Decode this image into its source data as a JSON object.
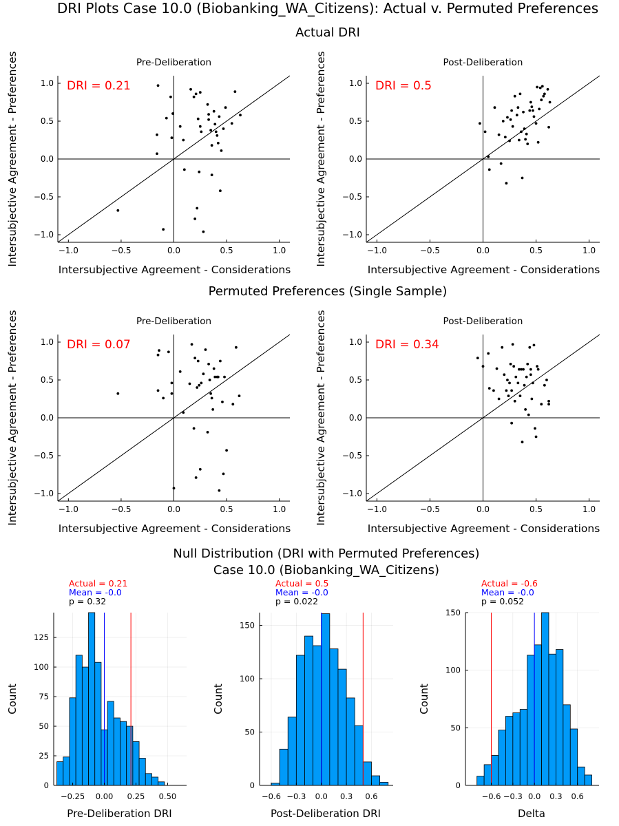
{
  "figure": {
    "title": "DRI Plots Case 10.0 (Biobanking_WA_Citizens): Actual v. Permuted Preferences",
    "actual_title": "Actual DRI",
    "permuted_title": "Permuted Preferences (Single Sample)",
    "null_title_line1": "Null Distribution (DRI with Permuted Preferences)",
    "null_title_line2": "Case 10.0 (Biobanking_WA_Citizens)"
  },
  "colors": {
    "dri": "#ff0000",
    "mean": "#0000ff",
    "bars": "#009af9",
    "points": "#000000"
  },
  "chart_data": [
    {
      "type": "scatter",
      "title": "Pre-Deliberation",
      "dri_label": "DRI = 0.21",
      "xlabel": "Intersubjective Agreement - Considerations",
      "ylabel": "Intersubjective Agreement - Preferences",
      "xlim": [
        -1.1,
        1.1
      ],
      "ylim": [
        -1.1,
        1.1
      ],
      "xticks": [
        -1.0,
        -0.5,
        0.0,
        0.5,
        1.0
      ],
      "yticks": [
        -1.0,
        -0.5,
        0.0,
        0.5,
        1.0
      ],
      "xtick_labels": [
        "−1.0",
        "−0.5",
        "0.0",
        "0.5",
        "1.0"
      ],
      "ytick_labels": [
        "−1.0",
        "−0.5",
        "0.0",
        "0.5",
        "1.0"
      ],
      "points": [
        [
          -0.53,
          -0.68
        ],
        [
          -0.15,
          0.97
        ],
        [
          -0.16,
          0.32
        ],
        [
          -0.16,
          0.07
        ],
        [
          -0.1,
          -0.93
        ],
        [
          -0.07,
          0.54
        ],
        [
          -0.03,
          0.82
        ],
        [
          -0.02,
          0.28
        ],
        [
          -0.01,
          0.6
        ],
        [
          0.06,
          0.43
        ],
        [
          0.09,
          0.25
        ],
        [
          0.1,
          -0.14
        ],
        [
          0.16,
          0.92
        ],
        [
          0.19,
          0.82
        ],
        [
          0.2,
          -0.79
        ],
        [
          0.21,
          0.86
        ],
        [
          0.22,
          -0.65
        ],
        [
          0.24,
          -0.17
        ],
        [
          0.25,
          0.88
        ],
        [
          0.23,
          0.53
        ],
        [
          0.25,
          0.43
        ],
        [
          0.26,
          0.36
        ],
        [
          0.28,
          -0.96
        ],
        [
          0.32,
          0.72
        ],
        [
          0.33,
          0.52
        ],
        [
          0.35,
          0.38
        ],
        [
          0.36,
          -0.21
        ],
        [
          0.36,
          0.18
        ],
        [
          0.38,
          0.63
        ],
        [
          0.39,
          0.46
        ],
        [
          0.4,
          0.36
        ],
        [
          0.41,
          0.31
        ],
        [
          0.42,
          0.21
        ],
        [
          0.43,
          0.56
        ],
        [
          0.44,
          -0.42
        ],
        [
          0.45,
          0.11
        ],
        [
          0.47,
          0.4
        ],
        [
          0.49,
          0.68
        ],
        [
          0.55,
          0.47
        ],
        [
          0.58,
          0.89
        ],
        [
          0.63,
          0.58
        ],
        [
          0.33,
          0.59
        ]
      ]
    },
    {
      "type": "scatter",
      "title": "Post-Deliberation",
      "dri_label": "DRI = 0.5",
      "xlabel": "Intersubjective Agreement - Considerations",
      "ylabel": "Intersubjective Agreement - Preferences",
      "xlim": [
        -1.1,
        1.1
      ],
      "ylim": [
        -1.1,
        1.1
      ],
      "xticks": [
        -1.0,
        -0.5,
        0.0,
        0.5,
        1.0
      ],
      "yticks": [
        -1.0,
        -0.5,
        0.0,
        0.5,
        1.0
      ],
      "xtick_labels": [
        "−1.0",
        "−0.5",
        "0.0",
        "0.5",
        "1.0"
      ],
      "ytick_labels": [
        "−1.0",
        "−0.5",
        "0.0",
        "0.5",
        "1.0"
      ],
      "points": [
        [
          -0.03,
          0.47
        ],
        [
          0.02,
          0.36
        ],
        [
          0.05,
          0.03
        ],
        [
          0.06,
          -0.14
        ],
        [
          0.11,
          0.68
        ],
        [
          0.15,
          0.32
        ],
        [
          0.17,
          -0.06
        ],
        [
          0.19,
          0.5
        ],
        [
          0.21,
          0.29
        ],
        [
          0.22,
          -0.32
        ],
        [
          0.23,
          0.55
        ],
        [
          0.25,
          0.24
        ],
        [
          0.26,
          0.52
        ],
        [
          0.27,
          0.64
        ],
        [
          0.28,
          0.43
        ],
        [
          0.3,
          0.83
        ],
        [
          0.32,
          0.58
        ],
        [
          0.33,
          0.68
        ],
        [
          0.34,
          0.25
        ],
        [
          0.35,
          0.86
        ],
        [
          0.36,
          0.36
        ],
        [
          0.37,
          -0.25
        ],
        [
          0.38,
          0.62
        ],
        [
          0.39,
          0.4
        ],
        [
          0.4,
          0.26
        ],
        [
          0.41,
          0.33
        ],
        [
          0.42,
          0.2
        ],
        [
          0.44,
          0.64
        ],
        [
          0.45,
          0.75
        ],
        [
          0.46,
          0.69
        ],
        [
          0.47,
          0.64
        ],
        [
          0.48,
          0.56
        ],
        [
          0.5,
          0.47
        ],
        [
          0.51,
          0.95
        ],
        [
          0.52,
          0.22
        ],
        [
          0.53,
          0.66
        ],
        [
          0.54,
          0.94
        ],
        [
          0.55,
          0.78
        ],
        [
          0.56,
          0.96
        ],
        [
          0.58,
          0.86
        ],
        [
          0.61,
          0.92
        ],
        [
          0.62,
          0.42
        ],
        [
          0.63,
          0.75
        ],
        [
          0.57,
          0.83
        ]
      ]
    },
    {
      "type": "scatter",
      "title": "Pre-Deliberation",
      "dri_label": "DRI = 0.07",
      "xlabel": "Intersubjective Agreement - Considerations",
      "ylabel": "Intersubjective Agreement - Preferences",
      "xlim": [
        -1.1,
        1.1
      ],
      "ylim": [
        -1.1,
        1.1
      ],
      "xticks": [
        -1.0,
        -0.5,
        0.0,
        0.5,
        1.0
      ],
      "yticks": [
        -1.0,
        -0.5,
        0.0,
        0.5,
        1.0
      ],
      "xtick_labels": [
        "−1.0",
        "−0.5",
        "0.0",
        "0.5",
        "1.0"
      ],
      "ytick_labels": [
        "−1.0",
        "−0.5",
        "0.0",
        "0.5",
        "1.0"
      ],
      "points": [
        [
          -0.53,
          0.32
        ],
        [
          -0.15,
          0.83
        ],
        [
          -0.14,
          0.89
        ],
        [
          -0.15,
          0.36
        ],
        [
          -0.1,
          0.26
        ],
        [
          -0.05,
          0.87
        ],
        [
          -0.02,
          0.46
        ],
        [
          -0.02,
          0.32
        ],
        [
          0.0,
          -0.93
        ],
        [
          0.06,
          0.61
        ],
        [
          0.09,
          0.07
        ],
        [
          0.15,
          0.45
        ],
        [
          0.17,
          0.97
        ],
        [
          0.19,
          -0.14
        ],
        [
          0.2,
          0.79
        ],
        [
          0.21,
          -0.79
        ],
        [
          0.22,
          0.4
        ],
        [
          0.23,
          0.75
        ],
        [
          0.24,
          0.43
        ],
        [
          0.25,
          -0.68
        ],
        [
          0.26,
          0.46
        ],
        [
          0.28,
          0.58
        ],
        [
          0.3,
          0.9
        ],
        [
          0.32,
          -0.19
        ],
        [
          0.33,
          0.71
        ],
        [
          0.34,
          0.5
        ],
        [
          0.35,
          0.32
        ],
        [
          0.36,
          0.26
        ],
        [
          0.37,
          0.11
        ],
        [
          0.38,
          0.65
        ],
        [
          0.39,
          0.54
        ],
        [
          0.41,
          0.54
        ],
        [
          0.42,
          0.54
        ],
        [
          0.43,
          -0.96
        ],
        [
          0.44,
          0.75
        ],
        [
          0.46,
          0.21
        ],
        [
          0.47,
          -0.74
        ],
        [
          0.48,
          0.54
        ],
        [
          0.5,
          -0.43
        ],
        [
          0.56,
          0.18
        ],
        [
          0.59,
          0.93
        ],
        [
          0.62,
          0.29
        ]
      ]
    },
    {
      "type": "scatter",
      "title": "Post-Deliberation",
      "dri_label": "DRI = 0.34",
      "xlabel": "Intersubjective Agreement - Considerations",
      "ylabel": "Intersubjective Agreement - Preferences",
      "xlim": [
        -1.1,
        1.1
      ],
      "ylim": [
        -1.1,
        1.1
      ],
      "xticks": [
        -1.0,
        -0.5,
        0.0,
        0.5,
        1.0
      ],
      "yticks": [
        -1.0,
        -0.5,
        0.0,
        0.5,
        1.0
      ],
      "xtick_labels": [
        "−1.0",
        "−0.5",
        "0.0",
        "0.5",
        "1.0"
      ],
      "ytick_labels": [
        "−1.0",
        "−0.5",
        "0.0",
        "0.5",
        "1.0"
      ],
      "points": [
        [
          -0.05,
          0.79
        ],
        [
          0.0,
          0.68
        ],
        [
          0.05,
          0.85
        ],
        [
          0.06,
          0.39
        ],
        [
          0.1,
          0.36
        ],
        [
          0.13,
          0.65
        ],
        [
          0.15,
          0.25
        ],
        [
          0.18,
          0.93
        ],
        [
          0.2,
          0.57
        ],
        [
          0.22,
          0.36
        ],
        [
          0.23,
          0.5
        ],
        [
          0.24,
          0.29
        ],
        [
          0.25,
          0.46
        ],
        [
          0.26,
          0.71
        ],
        [
          0.27,
          0.36
        ],
        [
          0.28,
          0.97
        ],
        [
          0.29,
          0.68
        ],
        [
          0.3,
          0.22
        ],
        [
          0.31,
          0.54
        ],
        [
          0.33,
          0.46
        ],
        [
          0.34,
          0.64
        ],
        [
          0.35,
          0.29
        ],
        [
          0.36,
          0.64
        ],
        [
          0.37,
          -0.32
        ],
        [
          0.38,
          0.64
        ],
        [
          0.39,
          0.43
        ],
        [
          0.4,
          0.11
        ],
        [
          0.41,
          0.54
        ],
        [
          0.42,
          0.71
        ],
        [
          0.43,
          0.04
        ],
        [
          0.44,
          0.93
        ],
        [
          0.45,
          0.57
        ],
        [
          0.46,
          0.25
        ],
        [
          0.47,
          0.46
        ],
        [
          0.48,
          0.96
        ],
        [
          0.49,
          -0.14
        ],
        [
          0.5,
          -0.25
        ],
        [
          0.51,
          0.68
        ],
        [
          0.52,
          0.64
        ],
        [
          0.55,
          0.18
        ],
        [
          0.58,
          0.43
        ],
        [
          0.6,
          0.5
        ],
        [
          0.62,
          0.22
        ],
        [
          0.62,
          0.18
        ],
        [
          0.45,
          0.64
        ],
        [
          0.27,
          -0.07
        ]
      ]
    },
    {
      "type": "bar",
      "subtype": "histogram",
      "xlabel": "Pre-Deliberation DRI",
      "ylabel": "Count",
      "annotations": [
        "Actual = 0.21",
        "Mean = -0.0",
        "p = 0.32"
      ],
      "actual": 0.21,
      "mean": 0.0,
      "xlim": [
        -0.4,
        0.65
      ],
      "ylim": [
        0,
        146
      ],
      "xticks": [
        -0.25,
        0.0,
        0.25,
        0.5
      ],
      "xtick_labels": [
        "−0.25",
        "0.00",
        "0.25",
        "0.50"
      ],
      "yticks": [
        0,
        25,
        50,
        75,
        100,
        125
      ],
      "ytick_labels": [
        "0",
        "25",
        "50",
        "75",
        "100",
        "125"
      ],
      "bin_start": -0.375,
      "bin_width": 0.05,
      "values": [
        20,
        24,
        74,
        110,
        100,
        146,
        104,
        47,
        71,
        57,
        54,
        50,
        37,
        23,
        10,
        7,
        3
      ]
    },
    {
      "type": "bar",
      "subtype": "histogram",
      "xlabel": "Post-Deliberation DRI",
      "ylabel": "Count",
      "annotations": [
        "Actual = 0.5",
        "Mean = -0.0",
        "p = 0.022"
      ],
      "actual": 0.5,
      "mean": 0.0,
      "xlim": [
        -0.74,
        0.86
      ],
      "ylim": [
        0,
        162
      ],
      "xticks": [
        -0.6,
        -0.3,
        0.0,
        0.3,
        0.6
      ],
      "xtick_labels": [
        "−0.6",
        "−0.3",
        "0.0",
        "0.3",
        "0.6"
      ],
      "yticks": [
        0,
        50,
        100,
        150
      ],
      "ytick_labels": [
        "0",
        "50",
        "100",
        "150"
      ],
      "bin_start": -0.6,
      "bin_width": 0.1,
      "values": [
        2,
        34,
        64,
        122,
        140,
        131,
        161,
        128,
        109,
        82,
        56,
        22,
        9,
        3
      ]
    },
    {
      "type": "bar",
      "subtype": "histogram",
      "xlabel": "Delta",
      "ylabel": "Count",
      "annotations": [
        "Actual = -0.6",
        "Mean = -0.0",
        "p = 0.052"
      ],
      "actual": -0.6,
      "mean": 0.0,
      "xlim": [
        -0.96,
        0.9
      ],
      "ylim": [
        0,
        150
      ],
      "xticks": [
        -0.6,
        -0.3,
        0.0,
        0.3,
        0.6
      ],
      "xtick_labels": [
        "−0.6",
        "−0.3",
        "0.0",
        "0.3",
        "0.6"
      ],
      "yticks": [
        0,
        50,
        100,
        150
      ],
      "ytick_labels": [
        "0",
        "50",
        "100",
        "150"
      ],
      "bin_start": -0.8,
      "bin_width": 0.1,
      "values": [
        8,
        18,
        26,
        48,
        60,
        63,
        66,
        113,
        122,
        150,
        114,
        118,
        70,
        49,
        16,
        9
      ]
    }
  ]
}
